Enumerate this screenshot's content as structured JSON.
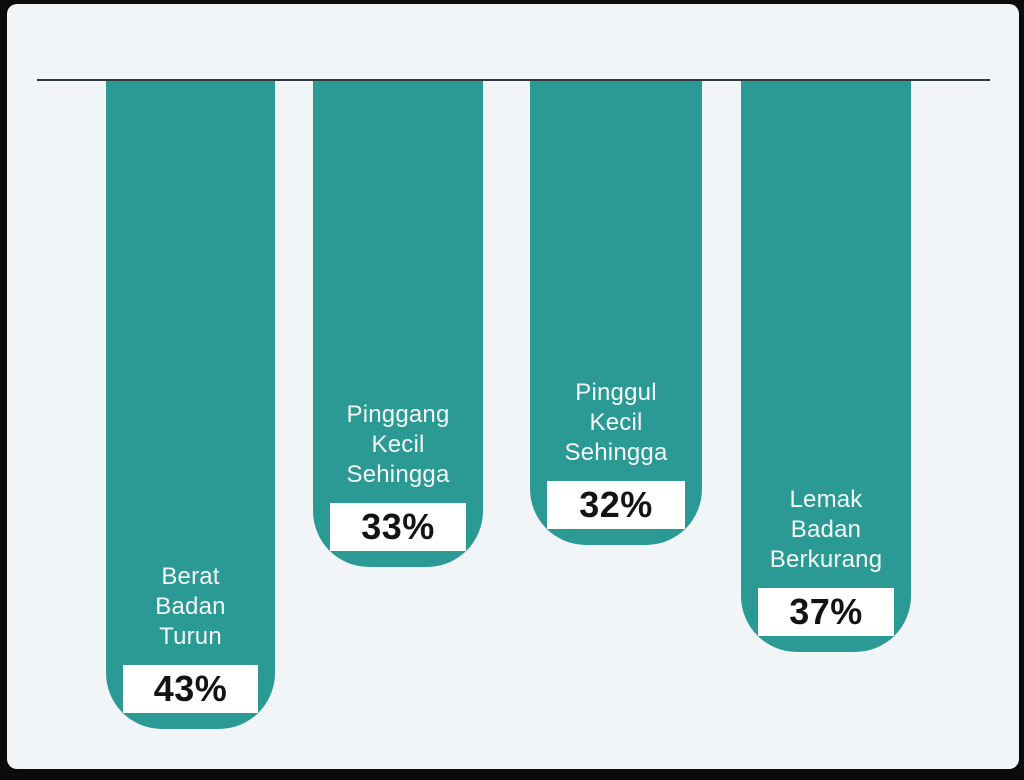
{
  "page": {
    "frame_background": "#0b0b0b",
    "canvas_background": "#f2f5f7"
  },
  "chart_data": {
    "type": "bar",
    "variant": "hanging-columns-from-top-baseline",
    "title": "",
    "xlabel": "",
    "ylabel": "",
    "grid": "off",
    "legend": "off",
    "axes": "hidden",
    "unit": "%",
    "categories": [
      "Berat Badan Turun",
      "Pinggang Kecil Sehingga",
      "Pinggul Kecil Sehingga",
      "Lemak Badan Berkurang"
    ],
    "values": [
      43,
      33,
      32,
      37
    ],
    "bars": [
      {
        "label": "Berat Badan\nTurun",
        "value_label": "43%"
      },
      {
        "label": "Pinggang\nKecil Sehingga",
        "value_label": "33%"
      },
      {
        "label": "Pinggul\nKecil Sehingga",
        "value_label": "32%"
      },
      {
        "label": "Lemak Badan\nBerkurang",
        "value_label": "37%"
      }
    ],
    "colors": {
      "bar": "#2b9a94",
      "bar_label_text": "#f4f8f8",
      "value_chip_background": "#ffffff",
      "value_chip_text": "#131313",
      "baseline": "#2e373b"
    }
  }
}
